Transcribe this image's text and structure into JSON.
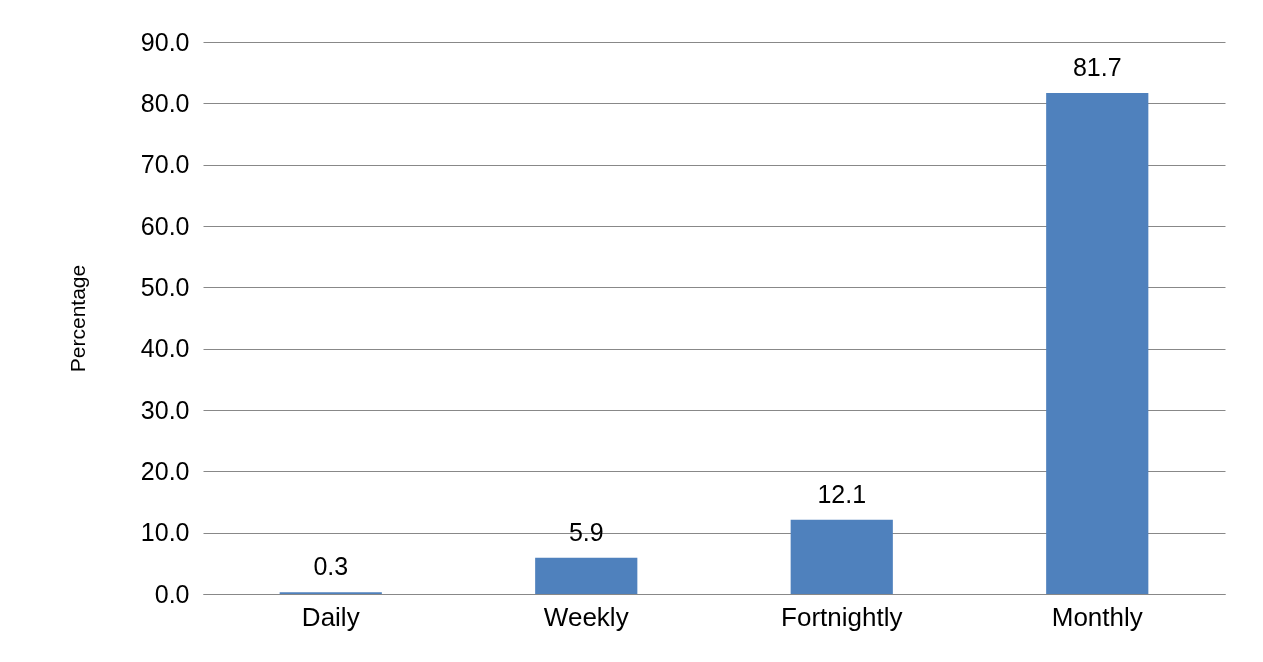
{
  "chart_data": {
    "type": "bar",
    "ylabel": "Percentage",
    "categories": [
      "Daily",
      "Weekly",
      "Fortnightly",
      "Monthly"
    ],
    "values": [
      0.3,
      5.9,
      12.1,
      81.7
    ],
    "color": "#4f81bd",
    "ylim": [
      0,
      90
    ],
    "yticks": [
      {
        "value": 0,
        "label": "0.0"
      },
      {
        "value": 10,
        "label": "10.0"
      },
      {
        "value": 20,
        "label": "20.0"
      },
      {
        "value": 30,
        "label": "30.0"
      },
      {
        "value": 40,
        "label": "40.0"
      },
      {
        "value": 50,
        "label": "50.0"
      },
      {
        "value": 60,
        "label": "60.0"
      },
      {
        "value": 70,
        "label": "70.0"
      },
      {
        "value": 80,
        "label": "80.0"
      },
      {
        "value": 90,
        "label": "90.0"
      }
    ],
    "grid": "y",
    "data_labels": true
  }
}
